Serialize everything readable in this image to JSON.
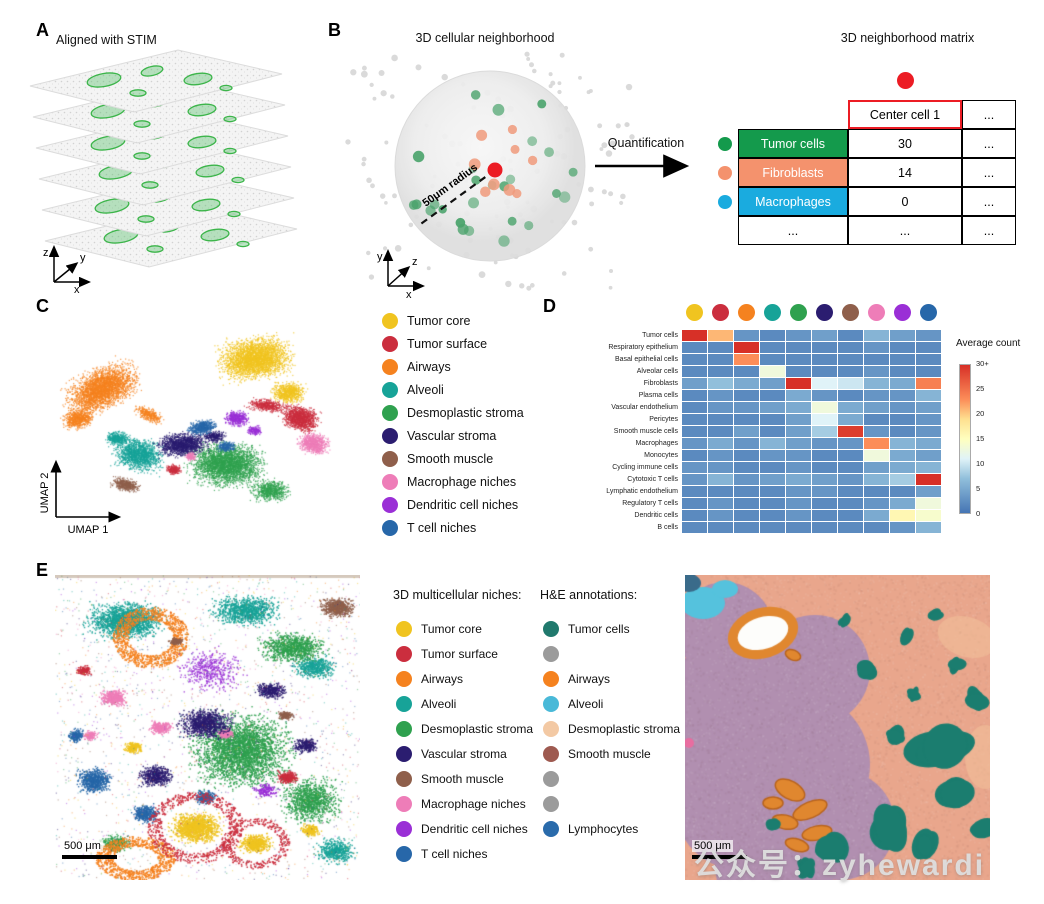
{
  "figure": {
    "watermark": "公众号：zyhewardi"
  },
  "panelA": {
    "label": "A",
    "title": "Aligned with STIM",
    "axes": {
      "x": "x",
      "y": "y",
      "z": "z"
    }
  },
  "panelB": {
    "label": "B",
    "title": "3D cellular neighborhood",
    "radius_label": "50μm radius",
    "quantification_label": "Quantification",
    "matrix_title": "3D neighborhood matrix",
    "axes": {
      "x": "x",
      "y": "y",
      "z": "z"
    },
    "matrix": {
      "center_dot_color": "#ec1c24",
      "header_label": "Center cell 1",
      "header_border_color": "#ec1c24",
      "ellipsis": "...",
      "rows": [
        {
          "label": "Tumor cells",
          "color": "#149a4c",
          "text_color": "#ffffff",
          "value": "30",
          "more": "..."
        },
        {
          "label": "Fibroblasts",
          "color": "#f4926d",
          "text_color": "#ffffff",
          "value": "14",
          "more": "..."
        },
        {
          "label": "Macrophages",
          "color": "#1aabdf",
          "text_color": "#ffffff",
          "value": "0",
          "more": "..."
        },
        {
          "label": "...",
          "color": "#ffffff",
          "text_color": "#000000",
          "value": "...",
          "more": "..."
        }
      ]
    }
  },
  "panelC": {
    "label": "C",
    "xlabel": "UMAP 1",
    "ylabel": "UMAP 2",
    "legend": [
      {
        "label": "Tumor core",
        "color": "#f0c420"
      },
      {
        "label": "Tumor surface",
        "color": "#cb2e3e"
      },
      {
        "label": "Airways",
        "color": "#f5821f"
      },
      {
        "label": "Alveoli",
        "color": "#17a398"
      },
      {
        "label": "Desmoplastic stroma",
        "color": "#2fa14f"
      },
      {
        "label": "Vascular stroma",
        "color": "#2b1d70"
      },
      {
        "label": "Smooth muscle",
        "color": "#8f5f4b"
      },
      {
        "label": "Macrophage niches",
        "color": "#ee7db8"
      },
      {
        "label": "Dendritic cell niches",
        "color": "#9a2fd6"
      },
      {
        "label": "T cell niches",
        "color": "#2767a9"
      }
    ]
  },
  "panelD": {
    "label": "D",
    "colorbar_title": "Average count",
    "colorbar_ticks": [
      "30+",
      "25",
      "20",
      "15",
      "10",
      "5",
      "0"
    ]
  },
  "panelE": {
    "label": "E",
    "niches_title": "3D multicellular niches:",
    "he_title": "H&E annotations:",
    "scale_bar_left": "500 μm",
    "scale_bar_right": "500 μm",
    "niches_legend": [
      {
        "label": "Tumor core",
        "color": "#f0c420"
      },
      {
        "label": "Tumor surface",
        "color": "#cb2e3e"
      },
      {
        "label": "Airways",
        "color": "#f5821f"
      },
      {
        "label": "Alveoli",
        "color": "#17a398"
      },
      {
        "label": "Desmoplastic stroma",
        "color": "#2fa14f"
      },
      {
        "label": "Vascular stroma",
        "color": "#2b1d70"
      },
      {
        "label": "Smooth muscle",
        "color": "#8f5f4b"
      },
      {
        "label": "Macrophage niches",
        "color": "#ee7db8"
      },
      {
        "label": "Dendritic cell niches",
        "color": "#9a2fd6"
      },
      {
        "label": "T cell niches",
        "color": "#2767a9"
      }
    ],
    "he_legend": [
      {
        "label": "Tumor cells",
        "color": "#20796d"
      },
      {
        "label": "",
        "color": "#9b9b9b"
      },
      {
        "label": "Airways",
        "color": "#f5821f"
      },
      {
        "label": "Alveoli",
        "color": "#49b9d8"
      },
      {
        "label": "Desmoplastic stroma",
        "color": "#f3c9a4"
      },
      {
        "label": "Smooth muscle",
        "color": "#9e5a50"
      },
      {
        "label": "",
        "color": "#9b9b9b"
      },
      {
        "label": "",
        "color": "#9b9b9b"
      },
      {
        "label": "Lymphocytes",
        "color": "#2a6bab"
      }
    ]
  },
  "chart_data": {
    "type": "heatmap",
    "columns": [
      "Tumor core",
      "Tumor surface",
      "Airways",
      "Alveoli",
      "Desmoplastic stroma",
      "Vascular stroma",
      "Smooth muscle",
      "Macrophage niches",
      "Dendritic cell niches",
      "T cell niches"
    ],
    "column_colors": [
      "#f0c420",
      "#cb2e3e",
      "#f5821f",
      "#17a398",
      "#2fa14f",
      "#2b1d70",
      "#8f5f4b",
      "#ee7db8",
      "#9a2fd6",
      "#2767a9"
    ],
    "rows": [
      "Tumor cells",
      "Respiratory epithelium",
      "Basal epithelial cells",
      "Alveolar cells",
      "Fibroblasts",
      "Plasma cells",
      "Vascular endothelium",
      "Pericytes",
      "Smooth muscle cells",
      "Macrophages",
      "Monocytes",
      "Cycling immune cells",
      "Cytotoxic T cells",
      "Lymphatic endothelium",
      "Regulatory T cells",
      "Dendritic cells",
      "B cells"
    ],
    "values": [
      [
        30,
        21,
        3,
        2,
        3,
        4,
        2,
        6,
        4,
        3
      ],
      [
        2,
        2,
        30,
        2,
        2,
        2,
        2,
        3,
        2,
        2
      ],
      [
        2,
        2,
        23,
        2,
        2,
        2,
        2,
        2,
        2,
        2
      ],
      [
        2,
        2,
        2,
        13,
        2,
        2,
        2,
        3,
        2,
        2
      ],
      [
        4,
        7,
        5,
        4,
        30,
        11,
        10,
        6,
        5,
        24
      ],
      [
        2,
        3,
        2,
        2,
        5,
        3,
        2,
        3,
        3,
        6
      ],
      [
        2,
        3,
        3,
        4,
        5,
        13,
        5,
        4,
        3,
        4
      ],
      [
        2,
        2,
        2,
        2,
        4,
        11,
        5,
        2,
        2,
        3
      ],
      [
        2,
        2,
        4,
        2,
        4,
        8,
        29,
        3,
        2,
        3
      ],
      [
        3,
        5,
        3,
        6,
        4,
        3,
        3,
        23,
        6,
        5
      ],
      [
        2,
        3,
        2,
        3,
        3,
        2,
        2,
        13,
        5,
        4
      ],
      [
        3,
        3,
        2,
        2,
        3,
        2,
        2,
        4,
        5,
        6
      ],
      [
        3,
        6,
        3,
        4,
        5,
        4,
        3,
        6,
        8,
        30
      ],
      [
        2,
        2,
        2,
        2,
        3,
        3,
        2,
        2,
        2,
        4
      ],
      [
        2,
        3,
        2,
        2,
        3,
        2,
        2,
        3,
        5,
        13
      ],
      [
        2,
        3,
        2,
        2,
        3,
        2,
        2,
        5,
        16,
        14
      ],
      [
        2,
        2,
        2,
        2,
        2,
        2,
        2,
        2,
        3,
        6
      ]
    ],
    "colorbar": {
      "title": "Average count",
      "min": 0,
      "max": 30,
      "ticks": [
        "30+",
        "25",
        "20",
        "15",
        "10",
        "5",
        "0"
      ]
    }
  }
}
